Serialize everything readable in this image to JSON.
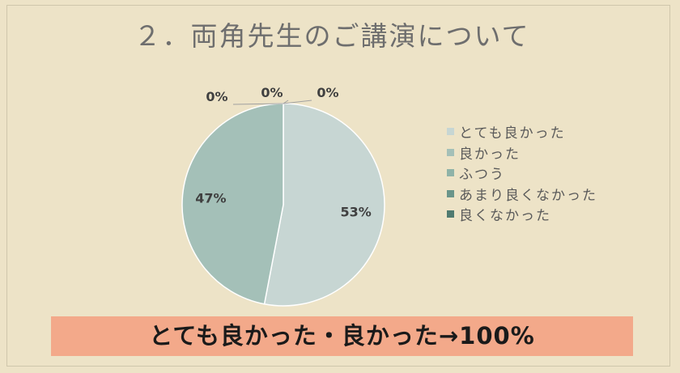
{
  "title": "２．両角先生のご講演について",
  "chart_data": {
    "type": "pie",
    "title": "２．両角先生のご講演について",
    "categories": [
      "とても良かった",
      "良かった",
      "ふつう",
      "あまり良くなかった",
      "良くなかった"
    ],
    "values": [
      53,
      47,
      0,
      0,
      0
    ],
    "labels": [
      "53%",
      "47%",
      "0%",
      "0%",
      "0%"
    ],
    "colors": [
      "#c7d6d3",
      "#a4c0b8",
      "#8fb3a8",
      "#6a958a",
      "#4f7a70"
    ],
    "legend_position": "right"
  },
  "banner_text": "とても良かった・良かった→100%"
}
